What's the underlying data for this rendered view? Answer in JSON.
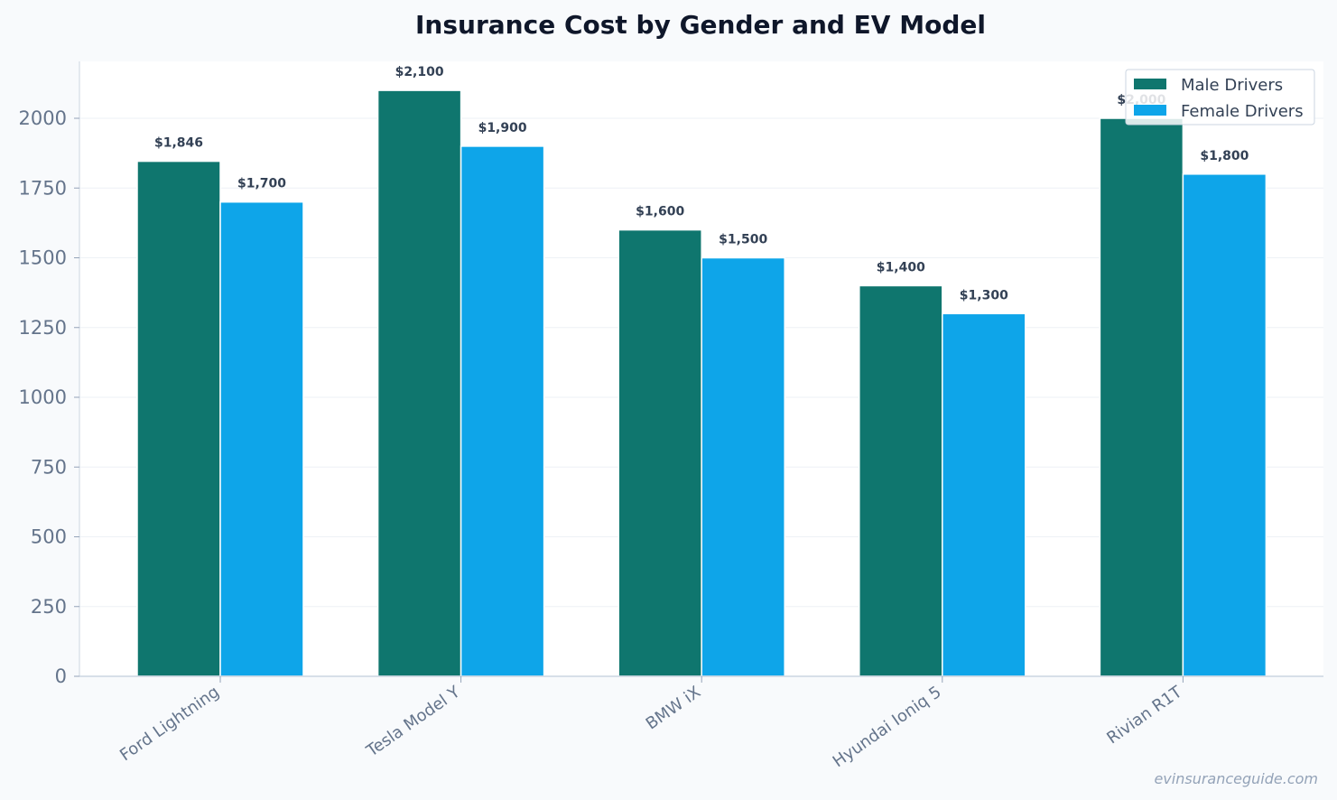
{
  "chart_data": {
    "type": "bar",
    "title": "Insurance Cost by Gender and EV Model",
    "xlabel": "",
    "ylabel": "",
    "categories": [
      "Ford Lightning",
      "Tesla Model Y",
      "BMW iX",
      "Hyundai Ioniq 5",
      "Rivian R1T"
    ],
    "series": [
      {
        "name": "Male Drivers",
        "color": "#0f766e",
        "values": [
          1846,
          2100,
          1600,
          1400,
          2000
        ],
        "labels": [
          "$1,846",
          "$2,100",
          "$1,600",
          "$1,400",
          "$2,000"
        ]
      },
      {
        "name": "Female Drivers",
        "color": "#0ea5e9",
        "values": [
          1700,
          1900,
          1500,
          1300,
          1800
        ],
        "labels": [
          "$1,700",
          "$1,900",
          "$1,500",
          "$1,300",
          "$1,800"
        ]
      }
    ],
    "ylim": [
      0,
      2200
    ],
    "yticks": [
      0,
      250,
      500,
      750,
      1000,
      1250,
      1500,
      1750,
      2000
    ],
    "grid": true,
    "legend_position": "top-right"
  },
  "watermark": "evinsuranceguide.com"
}
